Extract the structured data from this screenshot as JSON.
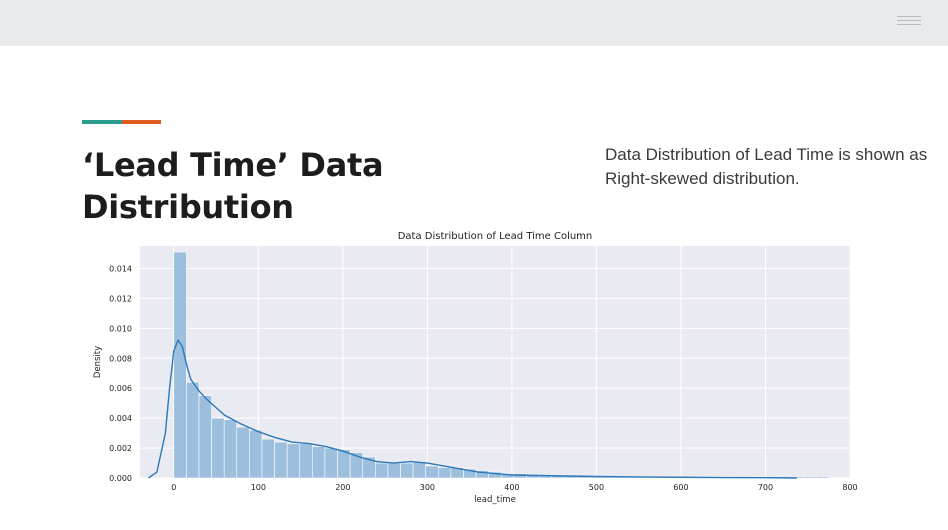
{
  "header": {
    "menu_icon": "hamburger-menu-icon"
  },
  "accent_colors": [
    "#2a9d8f",
    "#e05a1c"
  ],
  "slide": {
    "title_line1": "‘Lead Time’ Data",
    "title_line2": "Distribution",
    "description": "Data Distribution of Lead Time is shown as Right-skewed distribution."
  },
  "chart_data": {
    "type": "bar",
    "title": "Data Distribution of Lead Time Column",
    "xlabel": "lead_time",
    "ylabel": "Density",
    "xlim": [
      -40,
      800
    ],
    "ylim": [
      0,
      0.0155
    ],
    "grid": true,
    "bar_color": "#9bbfdd",
    "kde_color": "#2e78b7",
    "x_ticks": [
      0,
      100,
      200,
      300,
      400,
      500,
      600,
      700,
      800
    ],
    "x_tick_labels": [
      "0",
      "100",
      "200",
      "300",
      "400",
      "500",
      "600",
      "700",
      "800"
    ],
    "y_ticks": [
      0,
      0.002,
      0.004,
      0.006,
      0.008,
      0.01,
      0.012,
      0.014
    ],
    "y_tick_labels": [
      "0.000",
      "0.002",
      "0.004",
      "0.006",
      "0.008",
      "0.010",
      "0.012",
      "0.014"
    ],
    "bin_width": 14.9,
    "bin_start": 0,
    "bin_density": [
      0.0151,
      0.0064,
      0.0055,
      0.004,
      0.0039,
      0.0034,
      0.0032,
      0.0026,
      0.0024,
      0.0023,
      0.0023,
      0.0021,
      0.002,
      0.0019,
      0.0017,
      0.0014,
      0.001,
      0.001,
      0.001,
      0.0011,
      0.0008,
      0.0007,
      0.0007,
      0.0006,
      0.0005,
      0.0004,
      0.0003,
      0.0003,
      0.0002,
      0.0002,
      0.0002,
      0.0002,
      0.0001,
      0.0001,
      0.0001,
      0.0001,
      0.0001,
      0.0001,
      0.0001,
      0.0001,
      0.0001,
      0.0001,
      0.0001,
      0.0001,
      0.0001,
      0.0001,
      0.0001,
      0.0001,
      0.0001,
      0.0001,
      0.0001,
      0.0001
    ],
    "kde_x": [
      -30,
      -20,
      -10,
      -5,
      0,
      5,
      10,
      15,
      20,
      30,
      40,
      50,
      60,
      70,
      80,
      100,
      120,
      140,
      160,
      180,
      200,
      220,
      240,
      260,
      280,
      300,
      320,
      340,
      360,
      380,
      400,
      450,
      500,
      550,
      600,
      650,
      700,
      737
    ],
    "kde_y": [
      0.0,
      0.0004,
      0.003,
      0.006,
      0.0085,
      0.0092,
      0.0088,
      0.0076,
      0.0066,
      0.0058,
      0.0052,
      0.0047,
      0.0042,
      0.0039,
      0.0036,
      0.0031,
      0.0027,
      0.0024,
      0.0023,
      0.0021,
      0.0018,
      0.0014,
      0.0011,
      0.001,
      0.0011,
      0.001,
      0.0008,
      0.0006,
      0.0004,
      0.0003,
      0.0002,
      0.00015,
      0.0001,
      7e-05,
      5e-05,
      3e-05,
      2e-05,
      0.0
    ]
  }
}
